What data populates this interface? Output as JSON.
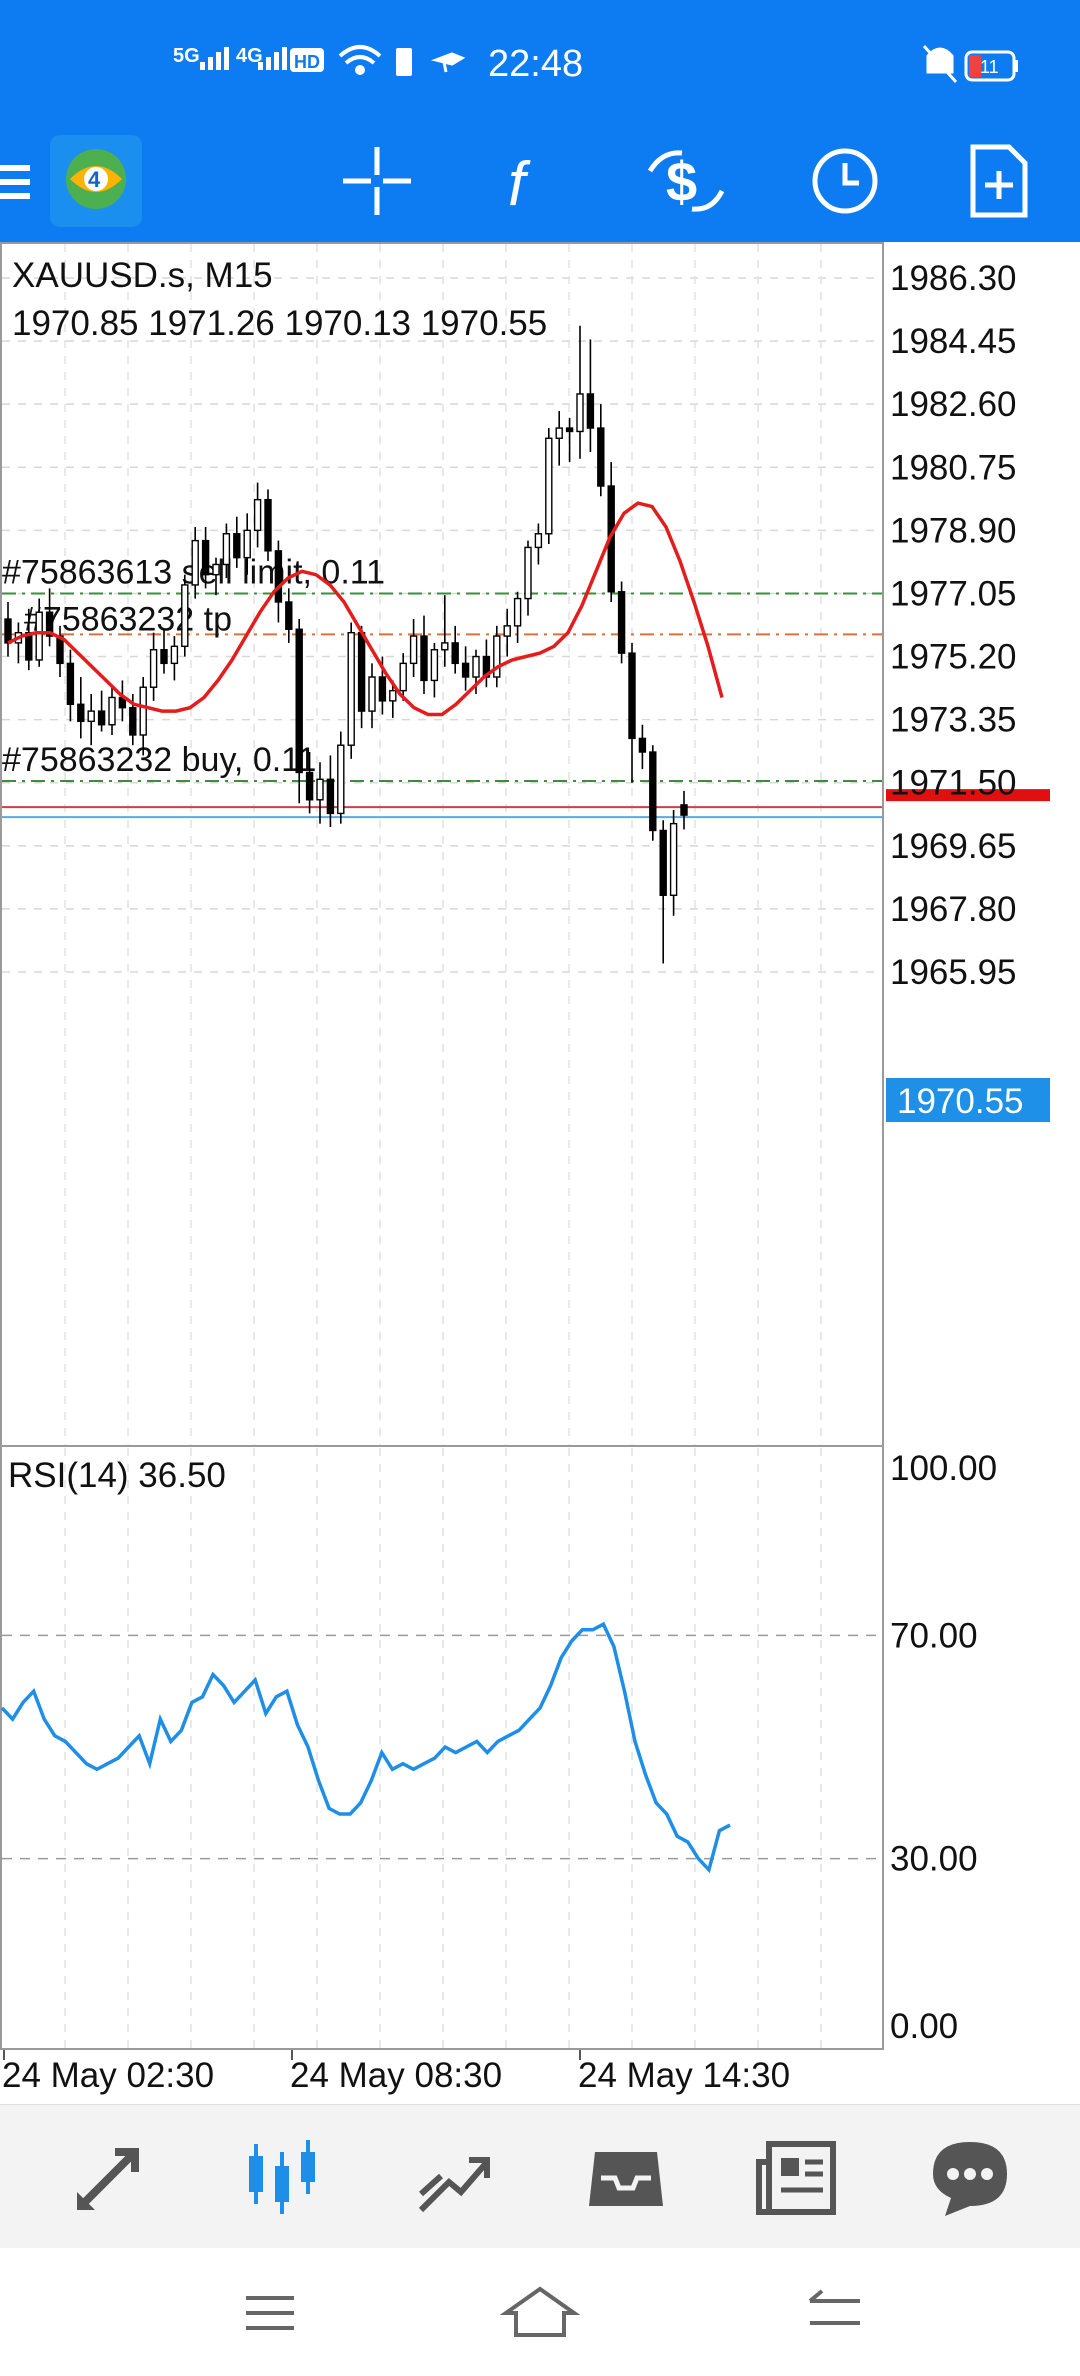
{
  "status_bar": {
    "network1": "5G",
    "network2": "4G",
    "hd_badge": "HD",
    "time": "22:48",
    "battery": "11"
  },
  "chart": {
    "symbol": "XAUUSD.s, M15",
    "ohlc": "1970.85 1971.26 1970.13 1970.55",
    "orders": [
      {
        "label": "#75863613 sell limit, 0.11",
        "price": 1977.05
      },
      {
        "label": "#75863232 tp",
        "price": 1975.85
      },
      {
        "label": "#75863232 buy, 0.11",
        "price": 1971.55
      }
    ],
    "current_price": "1970.55",
    "price_axis": [
      "1986.30",
      "1984.45",
      "1982.60",
      "1980.75",
      "1978.90",
      "1977.05",
      "1975.20",
      "1973.35",
      "1971.50",
      "1969.65",
      "1967.80",
      "1965.95"
    ],
    "time_axis": [
      "24 May 02:30",
      "24 May 08:30",
      "24 May 14:30"
    ],
    "rsi_label": "RSI(14) 36.50",
    "rsi_axis": [
      "100.00",
      "70.00",
      "30.00",
      "0.00"
    ]
  },
  "chart_data": {
    "type": "line",
    "candles": [
      [
        1976.3,
        1976.8,
        1975.2,
        1975.6
      ],
      [
        1975.6,
        1976.2,
        1975.0,
        1975.9
      ],
      [
        1975.9,
        1976.6,
        1974.8,
        1975.1
      ],
      [
        1975.1,
        1976.9,
        1974.9,
        1976.5
      ],
      [
        1976.5,
        1977.2,
        1975.5,
        1975.8
      ],
      [
        1975.8,
        1976.1,
        1974.6,
        1975.0
      ],
      [
        1975.0,
        1975.4,
        1973.3,
        1973.8
      ],
      [
        1973.8,
        1974.6,
        1972.8,
        1973.3
      ],
      [
        1973.3,
        1974.1,
        1972.6,
        1973.6
      ],
      [
        1973.6,
        1974.2,
        1973.0,
        1973.2
      ],
      [
        1973.2,
        1974.3,
        1972.9,
        1974.0
      ],
      [
        1974.0,
        1974.5,
        1973.3,
        1973.7
      ],
      [
        1973.7,
        1974.1,
        1972.6,
        1972.9
      ],
      [
        1972.9,
        1974.6,
        1972.3,
        1974.3
      ],
      [
        1974.3,
        1975.9,
        1973.9,
        1975.4
      ],
      [
        1975.4,
        1976.0,
        1974.7,
        1975.0
      ],
      [
        1975.0,
        1975.8,
        1974.5,
        1975.5
      ],
      [
        1975.5,
        1977.6,
        1975.2,
        1977.3
      ],
      [
        1977.3,
        1979.0,
        1976.9,
        1978.6
      ],
      [
        1978.6,
        1979.0,
        1977.2,
        1977.6
      ],
      [
        1977.6,
        1978.1,
        1977.0,
        1977.9
      ],
      [
        1977.9,
        1979.1,
        1977.5,
        1978.8
      ],
      [
        1978.8,
        1979.3,
        1977.8,
        1978.1
      ],
      [
        1978.1,
        1979.4,
        1977.6,
        1978.9
      ],
      [
        1978.9,
        1980.3,
        1978.4,
        1979.8
      ],
      [
        1979.8,
        1980.1,
        1978.0,
        1978.3
      ],
      [
        1978.3,
        1978.6,
        1976.2,
        1976.8
      ],
      [
        1976.8,
        1977.2,
        1975.6,
        1976.0
      ],
      [
        1976.0,
        1976.3,
        1970.9,
        1971.8
      ],
      [
        1971.8,
        1972.4,
        1970.6,
        1971.0
      ],
      [
        1971.0,
        1972.1,
        1970.3,
        1971.6
      ],
      [
        1971.6,
        1972.3,
        1970.2,
        1970.6
      ],
      [
        1970.6,
        1973.0,
        1970.3,
        1972.6
      ],
      [
        1972.6,
        1976.2,
        1972.2,
        1975.9
      ],
      [
        1975.9,
        1976.1,
        1973.1,
        1973.6
      ],
      [
        1973.6,
        1975.0,
        1973.1,
        1974.6
      ],
      [
        1974.6,
        1975.2,
        1973.5,
        1973.9
      ],
      [
        1973.9,
        1974.5,
        1973.4,
        1974.2
      ],
      [
        1974.2,
        1975.3,
        1973.9,
        1975.0
      ],
      [
        1975.0,
        1976.3,
        1974.6,
        1975.8
      ],
      [
        1975.8,
        1976.4,
        1974.1,
        1974.5
      ],
      [
        1974.5,
        1975.6,
        1974.0,
        1975.4
      ],
      [
        1975.4,
        1977.0,
        1974.9,
        1975.6
      ],
      [
        1975.6,
        1976.1,
        1974.7,
        1975.0
      ],
      [
        1975.0,
        1975.5,
        1974.2,
        1974.6
      ],
      [
        1974.6,
        1975.4,
        1974.1,
        1975.2
      ],
      [
        1975.2,
        1975.7,
        1974.3,
        1974.6
      ],
      [
        1974.6,
        1976.1,
        1974.3,
        1975.8
      ],
      [
        1975.8,
        1976.6,
        1975.2,
        1976.1
      ],
      [
        1976.1,
        1977.1,
        1975.6,
        1976.9
      ],
      [
        1976.9,
        1978.6,
        1976.4,
        1978.4
      ],
      [
        1978.4,
        1979.1,
        1977.9,
        1978.8
      ],
      [
        1978.8,
        1981.9,
        1978.5,
        1981.6
      ],
      [
        1981.6,
        1982.4,
        1980.8,
        1981.9
      ],
      [
        1981.9,
        1982.2,
        1980.9,
        1981.8
      ],
      [
        1981.8,
        1984.9,
        1981.0,
        1982.9
      ],
      [
        1982.9,
        1984.5,
        1981.2,
        1981.9
      ],
      [
        1981.9,
        1982.6,
        1979.9,
        1980.2
      ],
      [
        1980.2,
        1980.9,
        1976.8,
        1977.1
      ],
      [
        1977.1,
        1977.4,
        1975.0,
        1975.3
      ],
      [
        1975.3,
        1975.6,
        1971.5,
        1972.8
      ],
      [
        1972.8,
        1973.2,
        1971.9,
        1972.4
      ],
      [
        1972.4,
        1972.6,
        1969.8,
        1970.1
      ],
      [
        1970.1,
        1970.4,
        1966.2,
        1968.2
      ],
      [
        1968.2,
        1970.7,
        1967.6,
        1970.3
      ],
      [
        1970.85,
        1971.26,
        1970.13,
        1970.55
      ]
    ],
    "ma_values": [
      1975.6,
      1975.8,
      1975.9,
      1975.9,
      1975.7,
      1975.3,
      1974.9,
      1974.5,
      1974.1,
      1973.8,
      1973.7,
      1973.6,
      1973.6,
      1973.7,
      1974.0,
      1974.5,
      1975.1,
      1975.8,
      1976.5,
      1977.1,
      1977.5,
      1977.7,
      1977.6,
      1977.3,
      1976.8,
      1976.1,
      1975.4,
      1974.7,
      1974.1,
      1973.7,
      1973.5,
      1973.5,
      1973.8,
      1974.2,
      1974.6,
      1974.9,
      1975.1,
      1975.2,
      1975.3,
      1975.5,
      1975.9,
      1976.7,
      1977.7,
      1978.7,
      1979.4,
      1979.7,
      1979.6,
      1979.0,
      1978.0,
      1976.8,
      1975.5,
      1974.0
    ],
    "rsi_values": [
      57,
      55,
      58,
      60,
      55,
      52,
      51,
      49,
      47,
      46,
      47,
      48,
      50,
      52,
      47,
      55,
      51,
      53,
      58,
      59,
      63,
      61,
      58,
      60,
      62,
      56,
      59,
      60,
      54,
      50,
      44,
      39,
      38,
      38,
      40,
      44,
      49,
      46,
      47,
      46,
      47,
      48,
      50,
      49,
      50,
      51,
      49,
      51,
      52,
      53,
      55,
      57,
      61,
      66,
      69,
      71,
      71,
      72,
      68,
      60,
      51,
      45,
      40,
      38,
      34,
      33,
      30,
      28,
      35,
      36
    ],
    "ylim": [
      1965.0,
      1987.3
    ],
    "rsi_ylim": [
      0,
      100
    ]
  }
}
